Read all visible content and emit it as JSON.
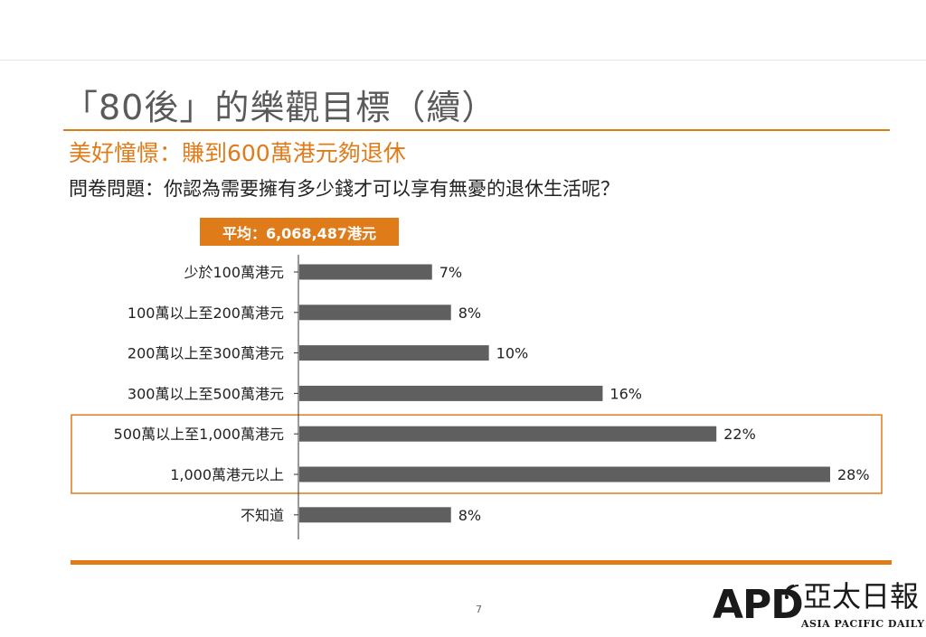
{
  "slide": {
    "title": "「80後」的樂觀目標（續）",
    "subtitle": "美好憧憬：賺到600萬港元夠退休",
    "question": "問卷問題：你認為需要擁有多少錢才可以享有無憂的退休生活呢？",
    "average_badge": "平均：6,068,487港元",
    "page_number": "7"
  },
  "colors": {
    "accent": "#e07b1a",
    "bar": "#5f5f5f",
    "title_text": "#5a5a5a"
  },
  "chart_data": {
    "type": "bar",
    "orientation": "horizontal",
    "categories": [
      "少於100萬港元",
      "100萬以上至200萬港元",
      "200萬以上至300萬港元",
      "300萬以上至500萬港元",
      "500萬以上至1,000萬港元",
      "1,000萬港元以上",
      "不知道"
    ],
    "values": [
      7,
      8,
      10,
      16,
      22,
      28,
      8
    ],
    "value_labels": [
      "7%",
      "8%",
      "10%",
      "16%",
      "22%",
      "28%",
      "8%"
    ],
    "unit": "%",
    "xlim": [
      0,
      28
    ],
    "grid": false,
    "highlighted_categories": [
      "500萬以上至1,000萬港元",
      "1,000萬港元以上"
    ]
  },
  "logo": {
    "mark": "APD",
    "chinese": "亞太日報",
    "english": "ASIA PACIFIC DAILY",
    "icon": "signal-waves-icon"
  }
}
